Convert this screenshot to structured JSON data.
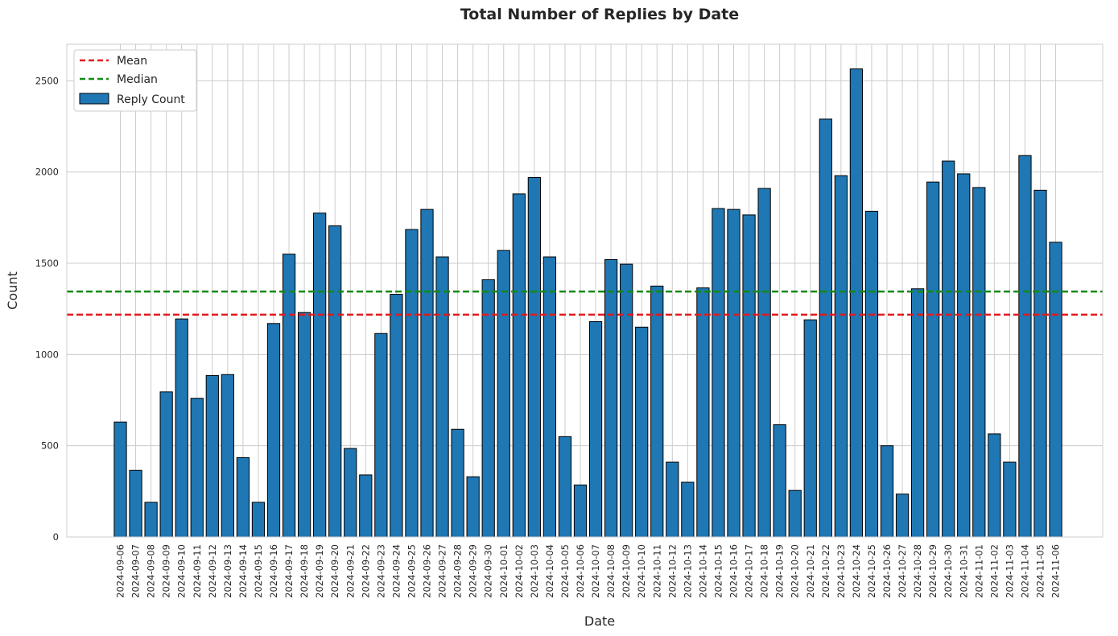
{
  "chart_data": {
    "type": "bar",
    "title": "Total Number of Replies by Date",
    "xlabel": "Date",
    "ylabel": "Count",
    "ylim": [
      0,
      2700
    ],
    "yticks": [
      0,
      500,
      1000,
      1500,
      2000,
      2500
    ],
    "grid": true,
    "legend_position": "top-left",
    "categories": [
      "2024-09-06",
      "2024-09-07",
      "2024-09-08",
      "2024-09-09",
      "2024-09-10",
      "2024-09-11",
      "2024-09-12",
      "2024-09-13",
      "2024-09-14",
      "2024-09-15",
      "2024-09-16",
      "2024-09-17",
      "2024-09-18",
      "2024-09-19",
      "2024-09-20",
      "2024-09-21",
      "2024-09-22",
      "2024-09-23",
      "2024-09-24",
      "2024-09-25",
      "2024-09-26",
      "2024-09-27",
      "2024-09-28",
      "2024-09-29",
      "2024-09-30",
      "2024-10-01",
      "2024-10-02",
      "2024-10-03",
      "2024-10-04",
      "2024-10-05",
      "2024-10-06",
      "2024-10-07",
      "2024-10-08",
      "2024-10-09",
      "2024-10-10",
      "2024-10-11",
      "2024-10-12",
      "2024-10-13",
      "2024-10-14",
      "2024-10-15",
      "2024-10-16",
      "2024-10-17",
      "2024-10-18",
      "2024-10-19",
      "2024-10-20",
      "2024-10-21",
      "2024-10-22",
      "2024-10-23",
      "2024-10-24",
      "2024-10-25",
      "2024-10-26",
      "2024-10-27",
      "2024-10-28",
      "2024-10-29",
      "2024-10-30",
      "2024-10-31",
      "2024-11-01",
      "2024-11-02",
      "2024-11-03",
      "2024-11-04",
      "2024-11-05",
      "2024-11-06"
    ],
    "series": [
      {
        "name": "Reply Count",
        "color": "#1f77b4",
        "values": [
          630,
          365,
          190,
          795,
          1195,
          760,
          885,
          890,
          435,
          190,
          1170,
          1550,
          1230,
          1775,
          1705,
          485,
          340,
          1115,
          1330,
          1685,
          1795,
          1535,
          590,
          330,
          1410,
          1570,
          1880,
          1970,
          1535,
          550,
          285,
          1180,
          1520,
          1495,
          1150,
          1375,
          410,
          300,
          1365,
          1800,
          1795,
          1765,
          1910,
          615,
          255,
          1190,
          2290,
          1980,
          2565,
          1785,
          500,
          235,
          1360,
          1945,
          2060,
          1990,
          1915,
          565,
          410,
          2090,
          1900,
          1615
        ]
      }
    ],
    "reference_lines": [
      {
        "name": "Mean",
        "value": 1218,
        "color": "#e31a1c",
        "style": "dashed"
      },
      {
        "name": "Median",
        "value": 1345,
        "color": "#138a13",
        "style": "dashed"
      }
    ]
  }
}
